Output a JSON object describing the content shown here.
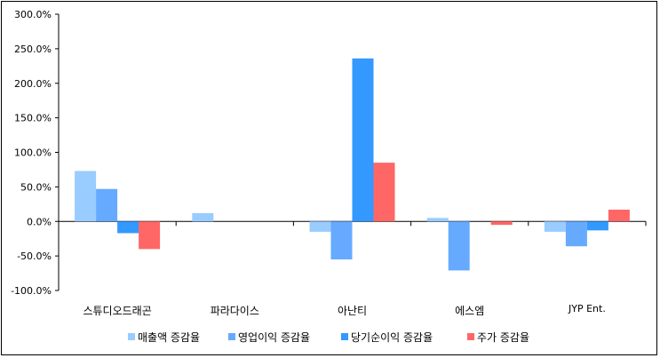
{
  "chart_data": {
    "type": "bar",
    "categories": [
      "스튜디오드래곤",
      "파라다이스",
      "아난티",
      "에스엠",
      "JYP Ent."
    ],
    "series": [
      {
        "name": "매출액 증감율",
        "values": [
          73,
          12,
          -15,
          5,
          -15
        ],
        "color": "#99ccff"
      },
      {
        "name": "영업이익 증감율",
        "values": [
          47,
          null,
          -55,
          -71,
          -36
        ],
        "color": "#66aaff"
      },
      {
        "name": "당기순이익 증감율",
        "values": [
          -17,
          null,
          236,
          null,
          -13
        ],
        "color": "#3399ff"
      },
      {
        "name": "주가 증감율",
        "values": [
          -40,
          null,
          85,
          -5,
          17
        ],
        "color": "#ff6666"
      }
    ],
    "ylim": [
      -100,
      300
    ],
    "yticks": [
      "300.0%",
      "250.0%",
      "200.0%",
      "150.0%",
      "100.0%",
      "50.0%",
      "0.0%",
      "-50.0%",
      "-100.0%"
    ],
    "ytick_values": [
      300,
      250,
      200,
      150,
      100,
      50,
      0,
      -50,
      -100
    ],
    "legend_position": "bottom",
    "grid": false
  }
}
